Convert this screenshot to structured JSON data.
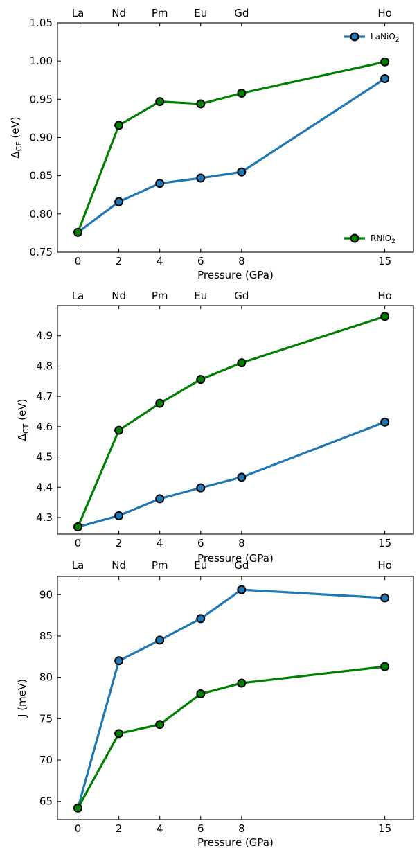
{
  "chart_data": [
    {
      "type": "line",
      "x": [
        0,
        2,
        4,
        6,
        8,
        15
      ],
      "x_tick_labels": [
        "0",
        "2",
        "4",
        "6",
        "8",
        "15"
      ],
      "top_labels": [
        "La",
        "Nd",
        "Pm",
        "Eu",
        "Gd",
        "Ho"
      ],
      "xlabel": "Pressure (GPa)",
      "ylabel": "Δ",
      "ylabel_sub": "CF",
      "ylabel_unit": " (eV)",
      "ylim": [
        0.75,
        1.05
      ],
      "yticks": [
        0.75,
        0.8,
        0.85,
        0.9,
        0.95,
        1.0,
        1.05
      ],
      "ytick_labels": [
        "0.75",
        "0.80",
        "0.85",
        "0.90",
        "0.95",
        "1.00",
        "1.05"
      ],
      "series": [
        {
          "name": "LaNiO",
          "name_sub": "2",
          "color": "#1f77b4",
          "values": [
            0.776,
            0.816,
            0.84,
            0.847,
            0.855,
            0.977
          ]
        },
        {
          "name": "RNiO",
          "name_sub": "2",
          "color": "#008000",
          "values": [
            0.776,
            0.916,
            0.947,
            0.944,
            0.958,
            0.999
          ]
        }
      ],
      "legend": [
        {
          "series": 0,
          "placement": "top-right"
        },
        {
          "series": 1,
          "placement": "bottom-right"
        }
      ]
    },
    {
      "type": "line",
      "x": [
        0,
        2,
        4,
        6,
        8,
        15
      ],
      "x_tick_labels": [
        "0",
        "2",
        "4",
        "6",
        "8",
        "15"
      ],
      "top_labels": [
        "La",
        "Nd",
        "Pm",
        "Eu",
        "Gd",
        "Ho"
      ],
      "xlabel": "Pressure (GPa)",
      "ylabel": "Δ",
      "ylabel_sub": "CT",
      "ylabel_unit": " (eV)",
      "ylim": [
        4.245,
        5.0
      ],
      "yticks": [
        4.3,
        4.4,
        4.5,
        4.6,
        4.7,
        4.8,
        4.9
      ],
      "ytick_labels": [
        "4.3",
        "4.4",
        "4.5",
        "4.6",
        "4.7",
        "4.8",
        "4.9"
      ],
      "series": [
        {
          "name": "",
          "color": "#1f77b4",
          "values": [
            4.269,
            4.306,
            4.362,
            4.398,
            4.433,
            4.615
          ]
        },
        {
          "name": "",
          "color": "#008000",
          "values": [
            4.269,
            4.588,
            4.677,
            4.756,
            4.811,
            4.964
          ]
        }
      ],
      "legend": []
    },
    {
      "type": "line",
      "x": [
        0,
        2,
        4,
        6,
        8,
        15
      ],
      "x_tick_labels": [
        "0",
        "2",
        "4",
        "6",
        "8",
        "15"
      ],
      "top_labels": [
        "La",
        "Nd",
        "Pm",
        "Eu",
        "Gd",
        "Ho"
      ],
      "xlabel": "Pressure (GPa)",
      "ylabel": "J (meV)",
      "ylabel_sub": "",
      "ylabel_unit": "",
      "ylim": [
        62.8,
        92.2
      ],
      "yticks": [
        65,
        70,
        75,
        80,
        85,
        90
      ],
      "ytick_labels": [
        "65",
        "70",
        "75",
        "80",
        "85",
        "90"
      ],
      "series": [
        {
          "name": "",
          "color": "#1f77b4",
          "values": [
            64.2,
            82.0,
            84.5,
            87.1,
            90.6,
            89.6
          ]
        },
        {
          "name": "",
          "color": "#008000",
          "values": [
            64.2,
            73.2,
            74.3,
            78.0,
            79.3,
            81.3
          ]
        }
      ],
      "legend": []
    }
  ]
}
